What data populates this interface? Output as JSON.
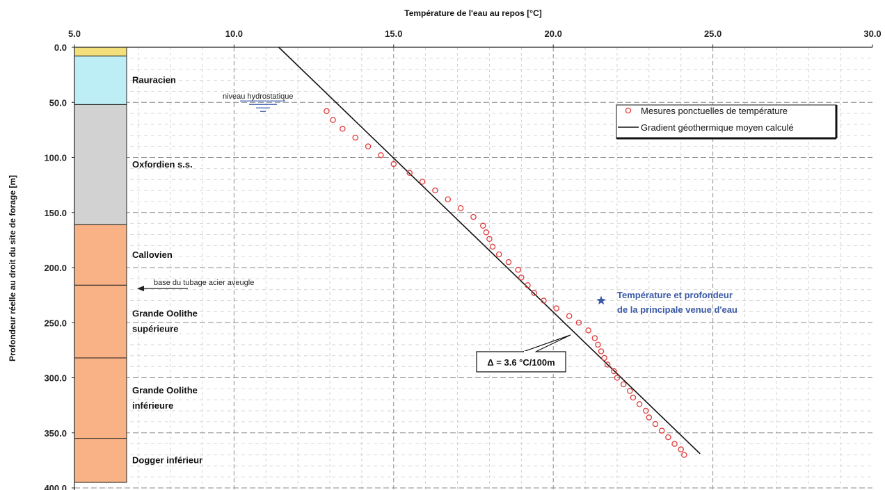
{
  "chart_data": {
    "type": "scatter",
    "title": "",
    "xlabel": "Température de l'eau au repos [°C]",
    "ylabel": "Profondeur réelle au droit du site de forage [m]",
    "xlim": [
      5.0,
      30.0
    ],
    "ylim": [
      0.0,
      400.0
    ],
    "y_inverted": true,
    "x_axis_position": "top",
    "grid": true,
    "x_ticks": [
      "5.0",
      "10.0",
      "15.0",
      "20.0",
      "25.0",
      "30.0"
    ],
    "y_ticks": [
      "0.0",
      "50.0",
      "100.0",
      "150.0",
      "200.0",
      "250.0",
      "300.0",
      "350.0",
      "400.0"
    ],
    "legend_position": "top-right",
    "series": [
      {
        "name": "Mesures ponctuelles de température",
        "kind": "scatter",
        "marker": "open-circle",
        "color": "#e23b3b",
        "points": [
          [
            12.9,
            58
          ],
          [
            13.1,
            66
          ],
          [
            13.4,
            74
          ],
          [
            13.8,
            82
          ],
          [
            14.2,
            90
          ],
          [
            14.6,
            98
          ],
          [
            15.0,
            106
          ],
          [
            15.5,
            114
          ],
          [
            15.9,
            122
          ],
          [
            16.3,
            130
          ],
          [
            16.7,
            138
          ],
          [
            17.1,
            146
          ],
          [
            17.5,
            154
          ],
          [
            17.8,
            162
          ],
          [
            17.9,
            168
          ],
          [
            18.0,
            174
          ],
          [
            18.1,
            181
          ],
          [
            18.3,
            188
          ],
          [
            18.6,
            195
          ],
          [
            18.9,
            202
          ],
          [
            19.0,
            209
          ],
          [
            19.2,
            216
          ],
          [
            19.4,
            223
          ],
          [
            19.7,
            230
          ],
          [
            20.1,
            237
          ],
          [
            20.5,
            244
          ],
          [
            20.8,
            250
          ],
          [
            21.1,
            257
          ],
          [
            21.3,
            264
          ],
          [
            21.4,
            270
          ],
          [
            21.5,
            276
          ],
          [
            21.6,
            282
          ],
          [
            21.7,
            288
          ],
          [
            21.9,
            294
          ],
          [
            22.0,
            300
          ],
          [
            22.2,
            306
          ],
          [
            22.4,
            312
          ],
          [
            22.5,
            318
          ],
          [
            22.7,
            324
          ],
          [
            22.9,
            330
          ],
          [
            23.0,
            336
          ],
          [
            23.2,
            342
          ],
          [
            23.4,
            348
          ],
          [
            23.6,
            354
          ],
          [
            23.8,
            360
          ],
          [
            24.0,
            365
          ],
          [
            24.1,
            370
          ]
        ]
      },
      {
        "name": "Gradient géothermique moyen calculé",
        "kind": "line",
        "color": "#111111",
        "points": [
          [
            11.4,
            0
          ],
          [
            24.6,
            369
          ]
        ]
      }
    ],
    "strata": [
      {
        "name": "",
        "top": 0,
        "bottom": 8,
        "color": "#f3e07a"
      },
      {
        "name": "Rauracien",
        "top": 8,
        "bottom": 52,
        "color": "#bdeef6"
      },
      {
        "name": "Oxfordien s.s.",
        "top": 52,
        "bottom": 161,
        "color": "#d2d2d2"
      },
      {
        "name": "Callovien",
        "top": 161,
        "bottom": 216,
        "color": "#f8b285"
      },
      {
        "name": "Grande Oolithe supérieure",
        "lines": [
          "Grande Oolithe",
          "supérieure"
        ],
        "top": 216,
        "bottom": 282,
        "color": "#f8b285"
      },
      {
        "name": "Grande Oolithe inférieure",
        "lines": [
          "Grande Oolithe",
          "inférieure"
        ],
        "top": 282,
        "bottom": 355,
        "color": "#f8b285"
      },
      {
        "name": "Dogger inférieur",
        "top": 355,
        "bottom": 395,
        "color": "#f8b285"
      }
    ],
    "annotations": {
      "hydrostatic_level": {
        "text": "niveau hydrostatique",
        "depth": 50
      },
      "casing": {
        "text": "base du tubage acier aveugle",
        "depth": 219
      },
      "gradient": {
        "text": "Δ = 3.6 °C/100m"
      },
      "water_inflow": {
        "lines": [
          "Température et profondeur",
          "de la principale venue d'eau"
        ],
        "marker": "star",
        "color": "#3a5aa8",
        "point": [
          21.5,
          230
        ]
      }
    }
  }
}
